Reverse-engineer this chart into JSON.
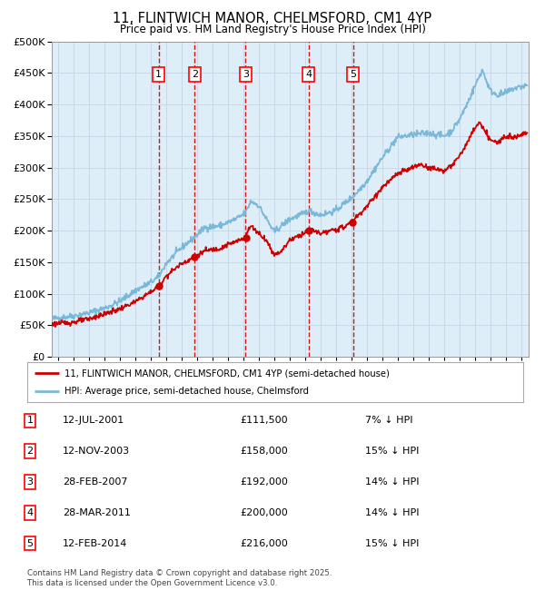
{
  "title": "11, FLINTWICH MANOR, CHELMSFORD, CM1 4YP",
  "subtitle": "Price paid vs. HM Land Registry's House Price Index (HPI)",
  "hpi_label": "HPI: Average price, semi-detached house, Chelmsford",
  "price_label": "11, FLINTWICH MANOR, CHELMSFORD, CM1 4YP (semi-detached house)",
  "footer": "Contains HM Land Registry data © Crown copyright and database right 2025.\nThis data is licensed under the Open Government Licence v3.0.",
  "sales": [
    {
      "num": 1,
      "date": "12-JUL-2001",
      "x_year": 2001.53,
      "price": 111500,
      "label": "7% ↓ HPI"
    },
    {
      "num": 2,
      "date": "12-NOV-2003",
      "x_year": 2003.86,
      "price": 158000,
      "label": "15% ↓ HPI"
    },
    {
      "num": 3,
      "date": "28-FEB-2007",
      "x_year": 2007.16,
      "price": 192000,
      "label": "14% ↓ HPI"
    },
    {
      "num": 4,
      "date": "28-MAR-2011",
      "x_year": 2011.24,
      "price": 200000,
      "label": "14% ↓ HPI"
    },
    {
      "num": 5,
      "date": "12-FEB-2014",
      "x_year": 2014.12,
      "price": 216000,
      "label": "15% ↓ HPI"
    }
  ],
  "ylim": [
    0,
    500000
  ],
  "yticks": [
    0,
    50000,
    100000,
    150000,
    200000,
    250000,
    300000,
    350000,
    400000,
    450000,
    500000
  ],
  "xlim_start": 1994.6,
  "xlim_end": 2025.5,
  "hpi_color": "#7ab8d9",
  "price_color": "#cc0000",
  "vline_color": "#cc0000",
  "grid_color": "#c8d8e8",
  "shade_color": "#ddeef8"
}
